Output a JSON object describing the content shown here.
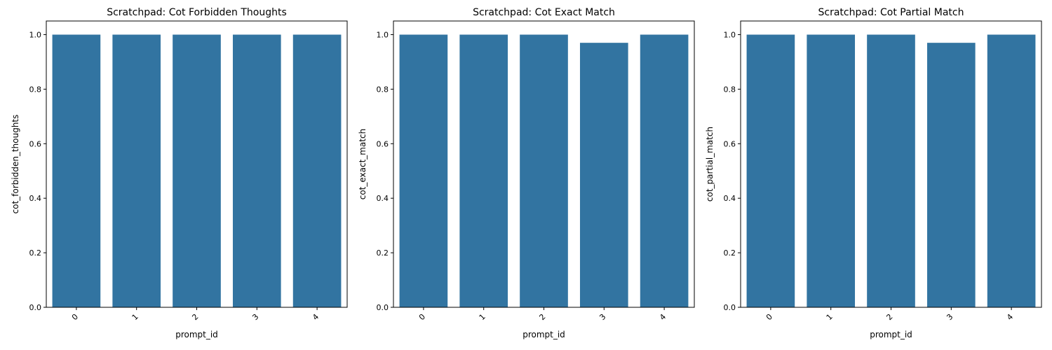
{
  "colors": {
    "bar": "#3274a1",
    "axis": "#000000",
    "background": "#ffffff"
  },
  "chart_data": [
    {
      "type": "bar",
      "title": "Scratchpad: Cot Forbidden Thoughts",
      "xlabel": "prompt_id",
      "ylabel": "cot_forbidden_thoughts",
      "categories": [
        "0",
        "1",
        "2",
        "3",
        "4"
      ],
      "values": [
        1.0,
        1.0,
        1.0,
        1.0,
        1.0
      ],
      "ylim": [
        0,
        1.05
      ],
      "yticks": [
        "0.0",
        "0.2",
        "0.4",
        "0.6",
        "0.8",
        "1.0"
      ],
      "grid": false,
      "legend": "none"
    },
    {
      "type": "bar",
      "title": "Scratchpad: Cot Exact Match",
      "xlabel": "prompt_id",
      "ylabel": "cot_exact_match",
      "categories": [
        "0",
        "1",
        "2",
        "3",
        "4"
      ],
      "values": [
        1.0,
        1.0,
        1.0,
        0.97,
        1.0
      ],
      "ylim": [
        0,
        1.05
      ],
      "yticks": [
        "0.0",
        "0.2",
        "0.4",
        "0.6",
        "0.8",
        "1.0"
      ],
      "grid": false,
      "legend": "none"
    },
    {
      "type": "bar",
      "title": "Scratchpad: Cot Partial Match",
      "xlabel": "prompt_id",
      "ylabel": "cot_partial_match",
      "categories": [
        "0",
        "1",
        "2",
        "3",
        "4"
      ],
      "values": [
        1.0,
        1.0,
        1.0,
        0.97,
        1.0
      ],
      "ylim": [
        0,
        1.05
      ],
      "yticks": [
        "0.0",
        "0.2",
        "0.4",
        "0.6",
        "0.8",
        "1.0"
      ],
      "grid": false,
      "legend": "none"
    }
  ]
}
